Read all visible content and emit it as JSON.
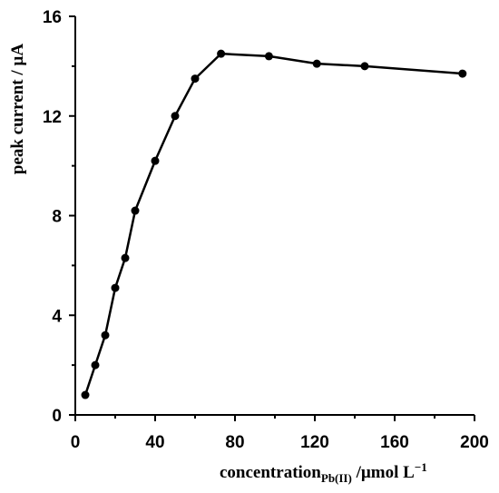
{
  "chart_data": {
    "type": "line",
    "title": "",
    "xlabel": {
      "main": "concentration",
      "subscript": "Pb(II)",
      "unit": " /µmol L",
      "superscript": "−1"
    },
    "ylabel": "peak current / µA",
    "xlim": [
      0,
      200
    ],
    "ylim": [
      0,
      16
    ],
    "xticks": [
      0,
      40,
      80,
      120,
      160,
      200
    ],
    "yticks": [
      0,
      4,
      8,
      12,
      16
    ],
    "grid": false,
    "legend": "none",
    "series": [
      {
        "x": [
          5,
          10,
          15,
          20,
          25,
          30,
          40,
          50,
          60,
          73,
          97,
          121,
          145,
          194
        ],
        "y": [
          0.8,
          2.0,
          3.2,
          5.1,
          6.3,
          8.2,
          10.2,
          12.0,
          13.5,
          14.5,
          14.4,
          14.1,
          14.0,
          13.7
        ]
      }
    ]
  }
}
